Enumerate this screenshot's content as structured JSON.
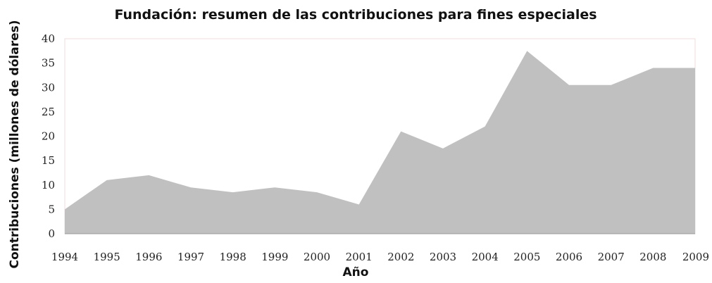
{
  "chart_data": {
    "type": "area",
    "title": "Fundación:  resumen de las contribuciones para fines especiales",
    "xlabel": "Año",
    "ylabel": "Contribuciones (millones de dólares)",
    "categories": [
      "1994",
      "1995",
      "1996",
      "1997",
      "1998",
      "1999",
      "2000",
      "2001",
      "2002",
      "2003",
      "2004",
      "2005",
      "2006",
      "2007",
      "2008",
      "2009"
    ],
    "series": [
      {
        "values": [
          5,
          11,
          12,
          9.5,
          8.5,
          9.5,
          8.5,
          6,
          21,
          17.5,
          22,
          37.5,
          30.5,
          30.5,
          34,
          34
        ]
      }
    ],
    "ylim": [
      0,
      40
    ],
    "yticks": [
      "0",
      "5",
      "10",
      "15",
      "20",
      "25",
      "30",
      "35",
      "40"
    ],
    "grid": false,
    "colors": {
      "area": "#c0c0c0"
    }
  }
}
